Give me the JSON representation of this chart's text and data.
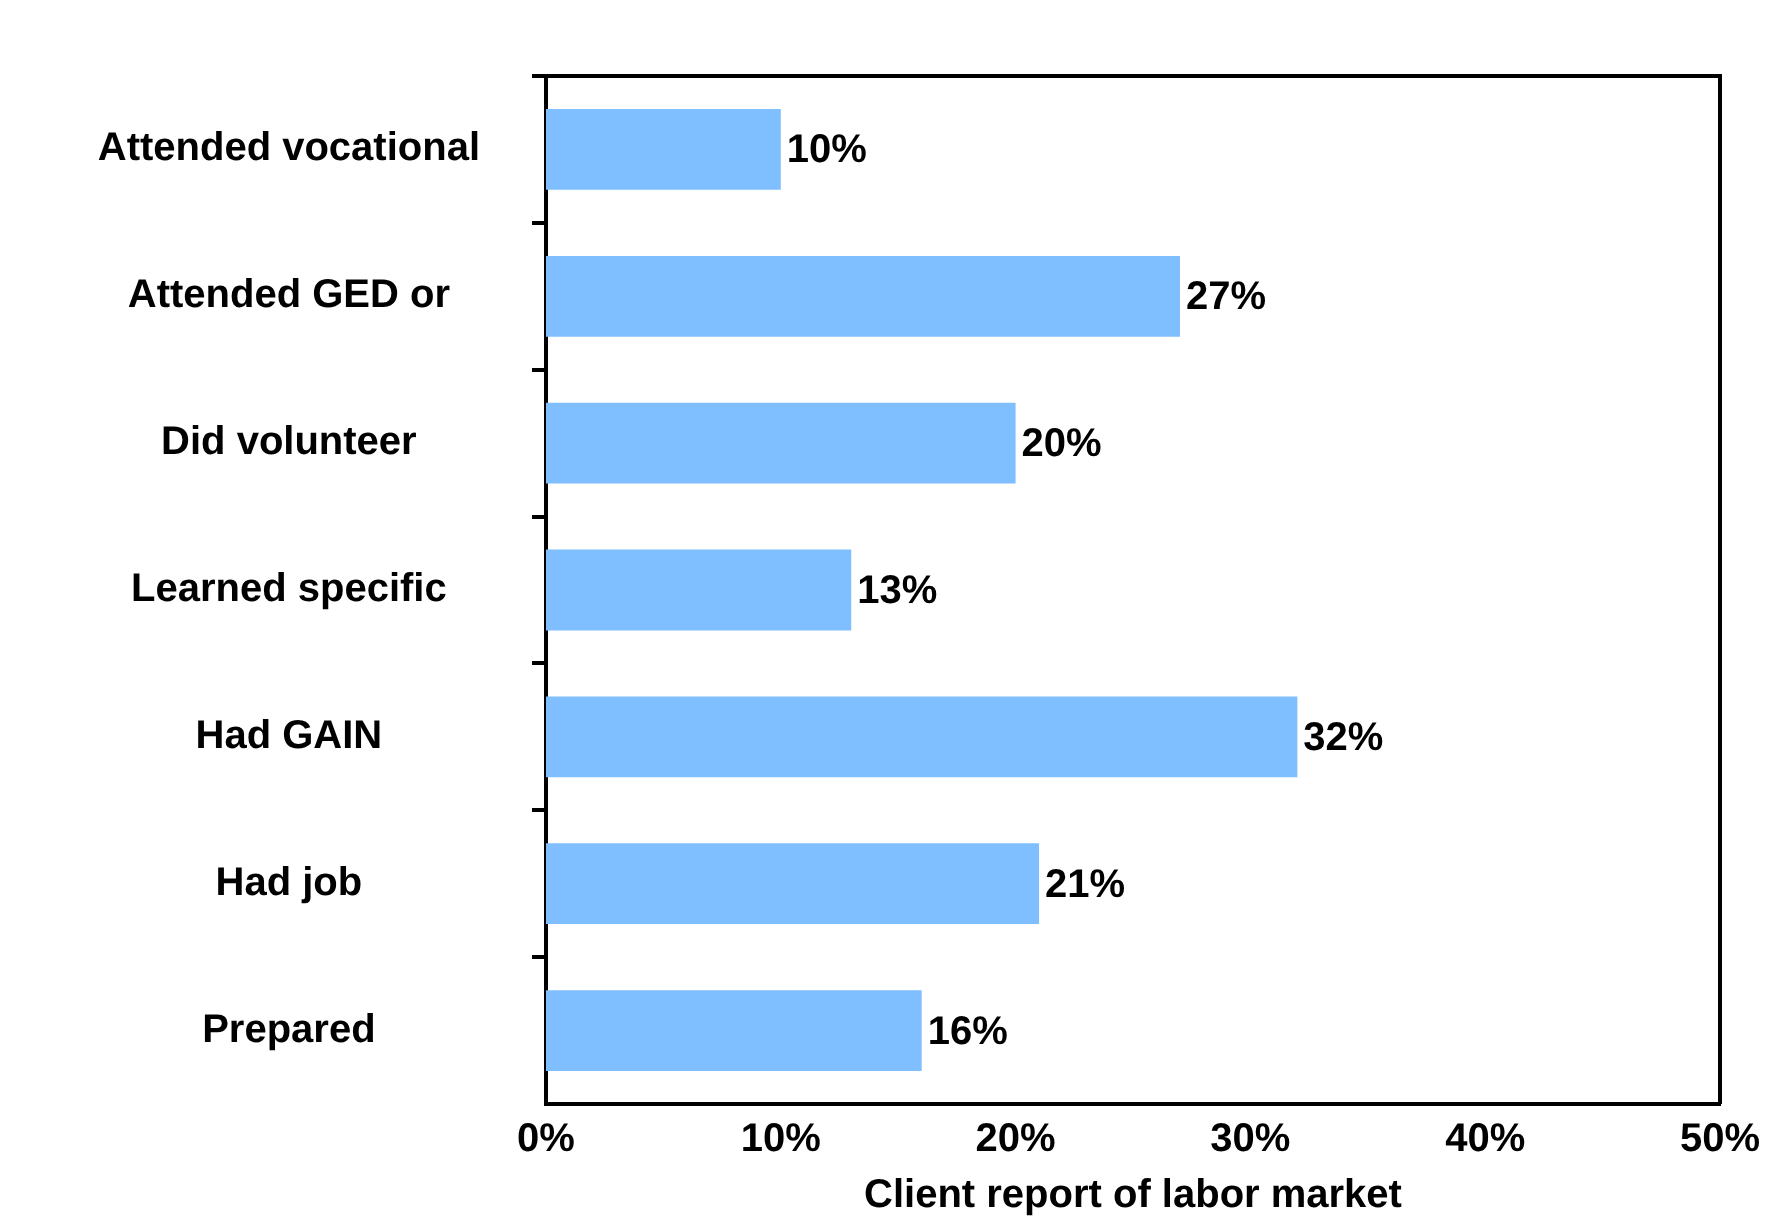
{
  "chart_data": {
    "type": "bar",
    "orientation": "horizontal",
    "categories": [
      "Attended vocational",
      "Attended GED or",
      "Did volunteer",
      "Learned specific",
      "Had GAIN",
      "Had job",
      "Prepared"
    ],
    "values": [
      10,
      27,
      20,
      13,
      32,
      21,
      16
    ],
    "color": "#80bfff",
    "value_labels": [
      "10%",
      "27%",
      "20%",
      "13%",
      "32%",
      "21%",
      "16%"
    ],
    "xlabel": "Client report of labor market",
    "xlim": [
      0,
      50
    ],
    "xticks": [
      {
        "value": 0,
        "label": "0%"
      },
      {
        "value": 10,
        "label": "10%"
      },
      {
        "value": 20,
        "label": "20%"
      },
      {
        "value": 30,
        "label": "30%"
      },
      {
        "value": 40,
        "label": "40%"
      },
      {
        "value": 50,
        "label": "50%"
      }
    ],
    "grid": false
  }
}
